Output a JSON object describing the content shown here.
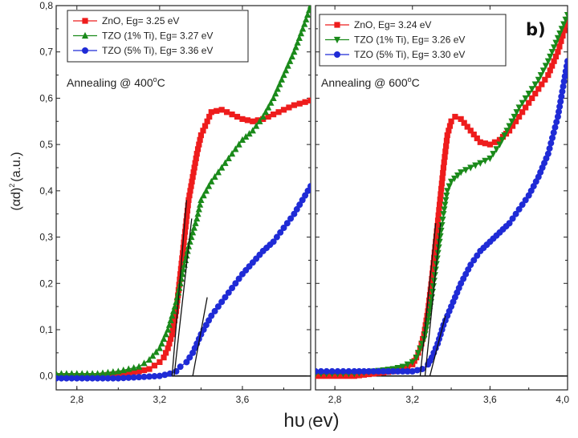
{
  "figure": {
    "xlabel_main": "hυ",
    "xlabel_unit": "(ev)",
    "ylabel": "(αd)",
    "ylabel_sup": "2",
    "ylabel_unit": "(a.u.)"
  },
  "chart_data": [
    {
      "type": "line",
      "panel": "a",
      "annotation": {
        "prefix": "Annealing @ 400",
        "degree": "o",
        "suffix": "C"
      },
      "xlim": [
        2.7,
        3.93
      ],
      "ylim": [
        -0.03,
        0.8
      ],
      "x_ticks": [
        "2,8",
        "3,2",
        "3,6"
      ],
      "y_ticks": [
        "0,0",
        "0,1",
        "0,2",
        "0,3",
        "0,4",
        "0,5",
        "0,6",
        "0,7",
        "0,8"
      ],
      "legend_position": "top-left",
      "series": [
        {
          "name": "ZnO, Eg= 3.25 eV",
          "color": "#ee1c1c",
          "marker": "square",
          "x": [
            2.7,
            2.9,
            3.0,
            3.1,
            3.15,
            3.2,
            3.22,
            3.24,
            3.26,
            3.28,
            3.3,
            3.32,
            3.34,
            3.36,
            3.38,
            3.4,
            3.45,
            3.5,
            3.55,
            3.6,
            3.65,
            3.7,
            3.75,
            3.8,
            3.85,
            3.93
          ],
          "y": [
            0.0,
            0.0,
            0.005,
            0.01,
            0.015,
            0.03,
            0.04,
            0.06,
            0.09,
            0.14,
            0.22,
            0.3,
            0.38,
            0.43,
            0.48,
            0.52,
            0.57,
            0.575,
            0.565,
            0.555,
            0.55,
            0.555,
            0.565,
            0.575,
            0.585,
            0.595
          ]
        },
        {
          "name": "TZO (1% Ti), Eg= 3.27 eV",
          "color": "#1a8a1a",
          "marker": "triangle-up",
          "x": [
            2.7,
            2.9,
            3.0,
            3.05,
            3.1,
            3.15,
            3.2,
            3.22,
            3.24,
            3.26,
            3.28,
            3.3,
            3.32,
            3.34,
            3.36,
            3.38,
            3.4,
            3.45,
            3.5,
            3.55,
            3.6,
            3.65,
            3.7,
            3.75,
            3.8,
            3.85,
            3.9,
            3.93
          ],
          "y": [
            0.005,
            0.005,
            0.01,
            0.015,
            0.02,
            0.035,
            0.06,
            0.08,
            0.1,
            0.13,
            0.16,
            0.2,
            0.24,
            0.28,
            0.31,
            0.34,
            0.38,
            0.42,
            0.45,
            0.48,
            0.51,
            0.53,
            0.56,
            0.6,
            0.65,
            0.7,
            0.76,
            0.8
          ]
        },
        {
          "name": "TZO (5% Ti), Eg= 3.36 eV",
          "color": "#1f2bd6",
          "marker": "circle",
          "x": [
            2.7,
            3.0,
            3.2,
            3.25,
            3.28,
            3.3,
            3.33,
            3.36,
            3.4,
            3.45,
            3.5,
            3.55,
            3.6,
            3.65,
            3.7,
            3.75,
            3.8,
            3.85,
            3.93
          ],
          "y": [
            -0.005,
            -0.005,
            0.0,
            0.005,
            0.01,
            0.02,
            0.03,
            0.05,
            0.09,
            0.13,
            0.16,
            0.19,
            0.22,
            0.245,
            0.27,
            0.29,
            0.32,
            0.35,
            0.41
          ]
        }
      ],
      "tangents": [
        {
          "x": [
            3.26,
            3.33
          ],
          "y": [
            0.0,
            0.38
          ]
        },
        {
          "x": [
            3.27,
            3.355
          ],
          "y": [
            0.0,
            0.34
          ]
        },
        {
          "x": [
            3.36,
            3.43
          ],
          "y": [
            0.0,
            0.17
          ]
        }
      ]
    },
    {
      "type": "line",
      "panel": "b",
      "panel_letter": "b)",
      "annotation": {
        "prefix": "Annealing @ 600",
        "degree": "o",
        "suffix": "C"
      },
      "xlim": [
        2.7,
        4.0
      ],
      "ylim": [
        -0.03,
        0.8
      ],
      "x_ticks": [
        "2,8",
        "3,2",
        "3,6",
        "4,0"
      ],
      "legend_position": "top-left",
      "series": [
        {
          "name": "ZnO, Eg= 3.24 eV",
          "color": "#ee1c1c",
          "marker": "square",
          "x": [
            2.7,
            2.9,
            3.0,
            3.1,
            3.15,
            3.2,
            3.22,
            3.24,
            3.26,
            3.28,
            3.3,
            3.32,
            3.34,
            3.36,
            3.38,
            3.4,
            3.42,
            3.45,
            3.5,
            3.55,
            3.6,
            3.65,
            3.7,
            3.75,
            3.8,
            3.85,
            3.9,
            3.95,
            4.0
          ],
          "y": [
            0.0,
            0.0,
            0.005,
            0.01,
            0.015,
            0.025,
            0.04,
            0.06,
            0.09,
            0.14,
            0.21,
            0.29,
            0.37,
            0.45,
            0.52,
            0.55,
            0.56,
            0.555,
            0.53,
            0.505,
            0.5,
            0.51,
            0.53,
            0.56,
            0.59,
            0.62,
            0.65,
            0.7,
            0.77
          ]
        },
        {
          "name": "TZO (1% Ti), Eg= 3.26 eV",
          "color": "#1a8a1a",
          "marker": "triangle-down",
          "x": [
            2.7,
            2.9,
            3.0,
            3.1,
            3.15,
            3.2,
            3.22,
            3.24,
            3.26,
            3.28,
            3.3,
            3.32,
            3.34,
            3.36,
            3.38,
            3.4,
            3.45,
            3.5,
            3.55,
            3.6,
            3.65,
            3.7,
            3.75,
            3.8,
            3.85,
            3.9,
            3.95,
            4.0
          ],
          "y": [
            0.005,
            0.005,
            0.01,
            0.015,
            0.02,
            0.03,
            0.04,
            0.06,
            0.08,
            0.12,
            0.17,
            0.23,
            0.29,
            0.35,
            0.4,
            0.42,
            0.44,
            0.45,
            0.46,
            0.47,
            0.5,
            0.54,
            0.58,
            0.61,
            0.64,
            0.68,
            0.73,
            0.78
          ]
        },
        {
          "name": "TZO (5% Ti), Eg= 3.30 eV",
          "color": "#1f2bd6",
          "marker": "circle",
          "x": [
            2.7,
            2.9,
            3.0,
            3.1,
            3.2,
            3.25,
            3.28,
            3.3,
            3.33,
            3.36,
            3.4,
            3.45,
            3.5,
            3.55,
            3.6,
            3.65,
            3.7,
            3.75,
            3.8,
            3.85,
            3.9,
            3.95,
            4.0
          ],
          "y": [
            0.01,
            0.01,
            0.01,
            0.01,
            0.01,
            0.015,
            0.025,
            0.04,
            0.07,
            0.11,
            0.15,
            0.2,
            0.24,
            0.27,
            0.29,
            0.31,
            0.33,
            0.36,
            0.39,
            0.43,
            0.48,
            0.56,
            0.68
          ]
        }
      ],
      "tangents": [
        {
          "x": [
            3.24,
            3.32
          ],
          "y": [
            0.0,
            0.33
          ]
        },
        {
          "x": [
            3.265,
            3.345
          ],
          "y": [
            0.0,
            0.33
          ]
        },
        {
          "x": [
            3.29,
            3.37
          ],
          "y": [
            0.0,
            0.13
          ]
        }
      ]
    }
  ]
}
